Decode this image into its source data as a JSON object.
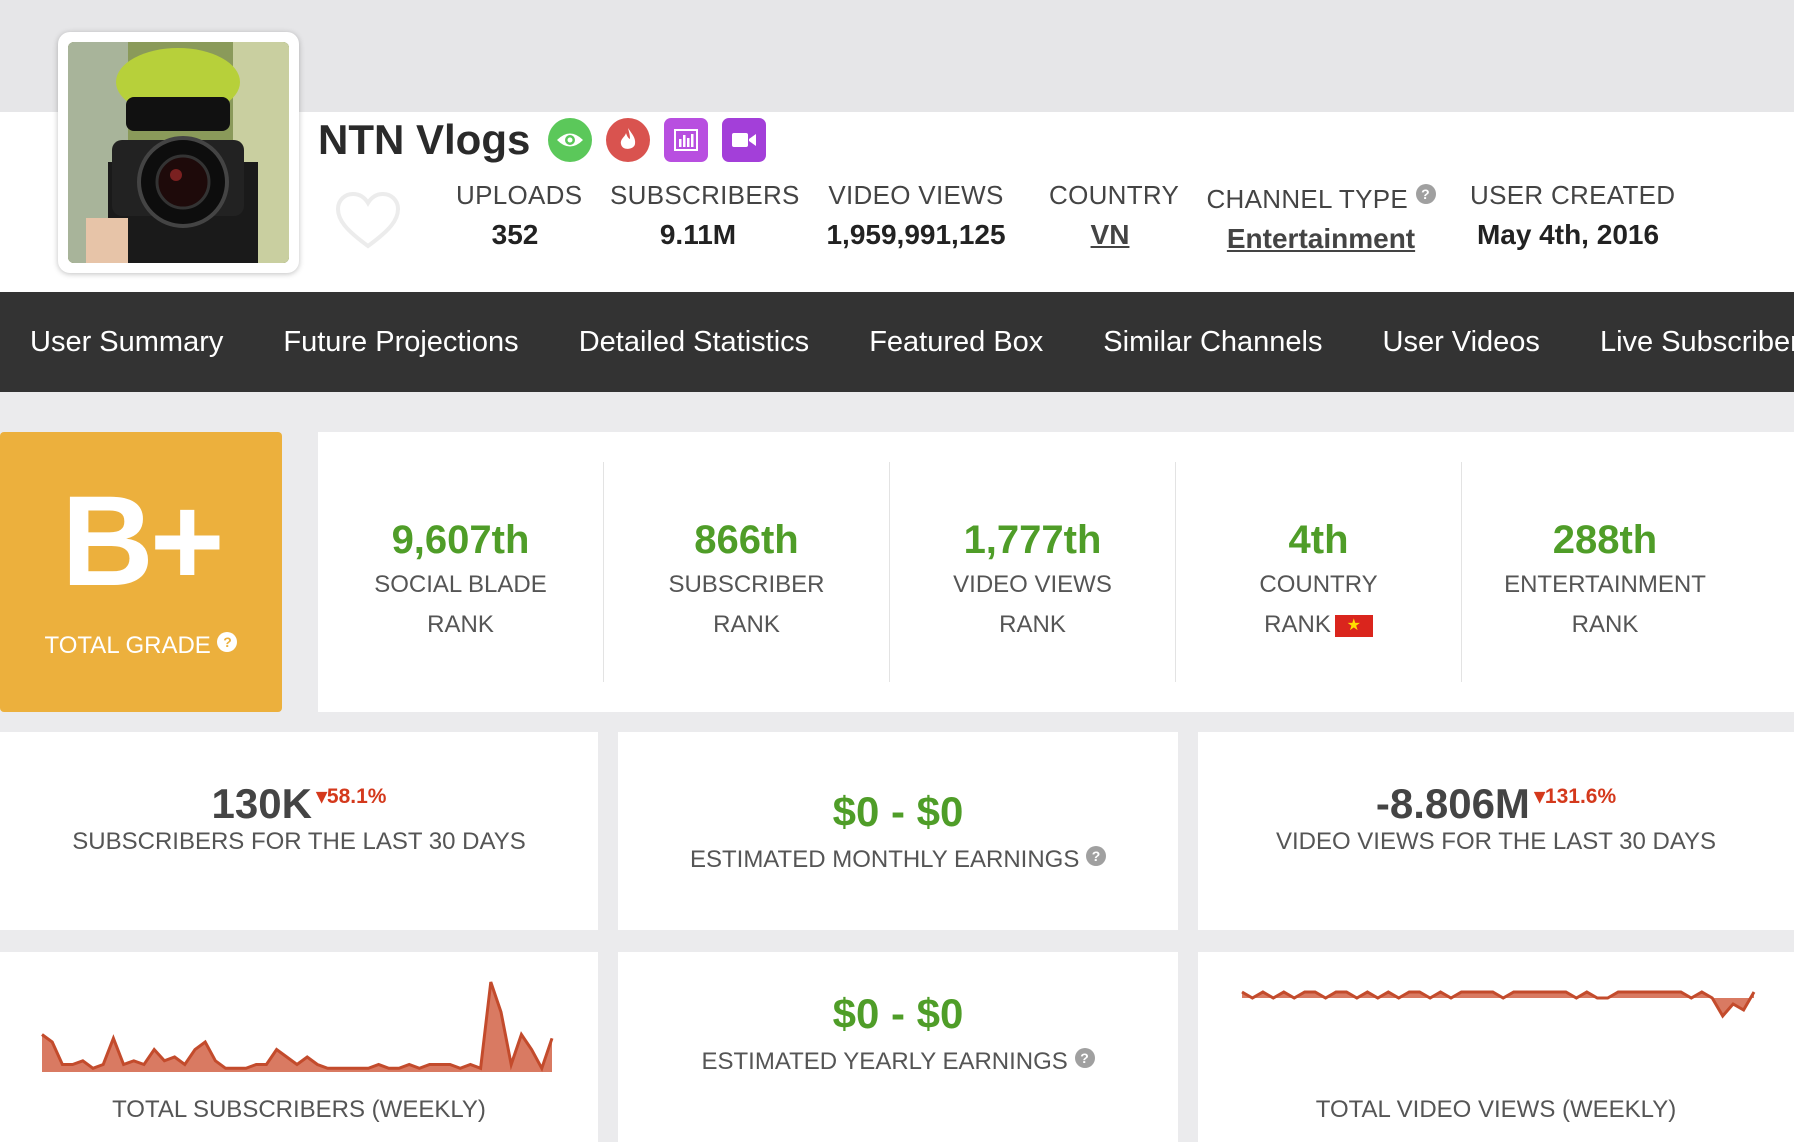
{
  "channel": {
    "name": "NTN Vlogs",
    "badges": [
      "eye-icon",
      "flame-icon",
      "bar-chart-icon",
      "video-camera-icon"
    ]
  },
  "stats": {
    "uploads_label": "UPLOADS",
    "uploads": "352",
    "subscribers_label": "SUBSCRIBERS",
    "subscribers": "9.11M",
    "video_views_label": "VIDEO VIEWS",
    "video_views": "1,959,991,125",
    "country_label": "COUNTRY",
    "country": "VN",
    "channel_type_label": "CHANNEL TYPE",
    "channel_type": "Entertainment",
    "user_created_label": "USER CREATED",
    "user_created": "May 4th, 2016"
  },
  "nav": [
    "User Summary",
    "Future Projections",
    "Detailed Statistics",
    "Featured Box",
    "Similar Channels",
    "User Videos",
    "Live Subscriber"
  ],
  "grade": {
    "value": "B+",
    "label": "TOTAL GRADE"
  },
  "ranks": [
    {
      "value": "9,607th",
      "line1": "SOCIAL BLADE",
      "line2": "RANK"
    },
    {
      "value": "866th",
      "line1": "SUBSCRIBER",
      "line2": "RANK"
    },
    {
      "value": "1,777th",
      "line1": "VIDEO VIEWS",
      "line2": "RANK"
    },
    {
      "value": "4th",
      "line1": "COUNTRY",
      "line2": "RANK"
    },
    {
      "value": "288th",
      "line1": "ENTERTAINMENT",
      "line2": "RANK"
    }
  ],
  "cards": {
    "subs_30": {
      "value": "130K",
      "change": "58.1%",
      "label": "SUBSCRIBERS FOR THE LAST 30 DAYS"
    },
    "monthly": {
      "value": "$0 - $0",
      "label": "ESTIMATED MONTHLY EARNINGS"
    },
    "views_30": {
      "value": "-8.806M",
      "change": "131.6%",
      "label": "VIDEO VIEWS FOR THE LAST 30 DAYS"
    },
    "yearly": {
      "value": "$0 - $0",
      "label": "ESTIMATED YEARLY EARNINGS"
    },
    "subs_weekly_label": "TOTAL SUBSCRIBERS (WEEKLY)",
    "views_weekly_label": "TOTAL VIDEO VIEWS (WEEKLY)"
  },
  "colors": {
    "nav_bg": "#333333",
    "grade_bg": "#ecb03d",
    "rank_green": "#4f9d28",
    "negative_red": "#d4391c",
    "chart_fill": "#d97a62",
    "chart_line": "#c34b2c"
  },
  "chart_data": [
    {
      "type": "area",
      "title": "TOTAL SUBSCRIBERS (WEEKLY)",
      "values": [
        5,
        4,
        1,
        1,
        1.5,
        0.5,
        1,
        4.5,
        1,
        1.5,
        1,
        3,
        1.5,
        2,
        1,
        3,
        4,
        1.5,
        0.5,
        0.5,
        0.5,
        1,
        1,
        3,
        2,
        1,
        2,
        1,
        0.5,
        0.5,
        0.5,
        0.5,
        0.5,
        1,
        0.5,
        0.5,
        1,
        0.5,
        1,
        1,
        1,
        0.5,
        1,
        0.5,
        12,
        8,
        1,
        5,
        3,
        0.5,
        4.5
      ]
    },
    {
      "type": "area",
      "title": "TOTAL VIDEO VIEWS (WEEKLY)",
      "values": [
        1,
        0,
        1,
        0,
        1,
        0,
        1,
        1,
        0,
        1,
        1,
        0,
        1,
        0,
        1,
        0,
        1,
        1,
        0,
        1,
        0,
        1,
        1,
        1,
        1,
        0,
        1,
        1,
        1,
        1,
        1,
        1,
        0,
        1,
        0,
        0,
        1,
        1,
        1,
        1,
        1,
        1,
        1,
        0,
        1,
        0,
        -3,
        -1,
        -2,
        1
      ]
    }
  ]
}
